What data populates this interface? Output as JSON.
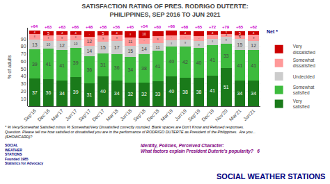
{
  "chart_data": {
    "type": "bar",
    "stacked": true,
    "data_labels": true,
    "grid": true,
    "legend": "right",
    "title": "SATISFACTION RATING OF PRES. RODRIGO DUTERTE:",
    "subtitle": "PHILIPPINES, SEP 2016 TO JUN 2021",
    "ylabel": "% of adults",
    "categories": [
      "Sep'16",
      "Dec'16",
      "Mar'17",
      "Jun'17",
      "Sep'17",
      "Dec'17",
      "Mar'18",
      "Jun'18",
      "Sep'18",
      "Dec'18",
      "Mar'19",
      "Jun'19",
      "Sep'19",
      "Dec'19",
      "Nov'20",
      "Mar'21",
      "Jun'21"
    ],
    "series": [
      {
        "name": "Very\nsatisfied",
        "color": "#1a7a1a",
        "values": [
          37,
          36,
          34,
          39,
          31,
          40,
          34,
          32,
          32,
          33,
          40,
          38,
          38,
          41,
          51,
          34,
          34
        ]
      },
      {
        "name": "Somewhat\nsatisfied",
        "color": "#3dbb3d",
        "values": [
          39,
          41,
          41,
          39,
          36,
          31,
          36,
          34,
          38,
          41,
          40,
          42,
          40,
          41,
          33,
          41,
          41
        ]
      },
      {
        "name": "Undecided",
        "color": "#cccccc",
        "values": [
          13,
          10,
          12,
          10,
          14,
          15,
          17,
          15,
          14,
          11,
          8,
          9,
          9,
          8,
          9,
          15,
          12
        ]
      },
      {
        "name": "Somewhat\ndissatisfied",
        "color": "#ff9999",
        "values": [
          8,
          8,
          9,
          8,
          12,
          9,
          9,
          11,
          7,
          9,
          7,
          7,
          7,
          6,
          4,
          5,
          9
        ]
      },
      {
        "name": "Very\ndissatisfied",
        "color": "#cc0000",
        "values": [
          4,
          5,
          4,
          4,
          7,
          5,
          4,
          8,
          10,
          6,
          6,
          4,
          6,
          4,
          3,
          5,
          4
        ]
      }
    ],
    "net": {
      "label": "Net *",
      "values": [
        64,
        63,
        63,
        66,
        48,
        58,
        56,
        45,
        54,
        60,
        66,
        68,
        65,
        72,
        79,
        65,
        62
      ],
      "value_labels": [
        "+64",
        "+63",
        "+63",
        "+66",
        "+48",
        "+58",
        "+56",
        "+45",
        "+54",
        "+60",
        "+66",
        "+68",
        "+65",
        "+72",
        "+79",
        "+65",
        "+62"
      ]
    },
    "ylim": [
      0,
      105
    ],
    "yticks": [
      10,
      20,
      30,
      40,
      50,
      60,
      70,
      80,
      90
    ],
    "annotations": [
      {
        "text": "* % Very/Somewhat Satisfied minus % Somewhat/Very Dissatisfied correctly rounded. Blank spaces are Don't Know and Refused responses.\nQuestion. Please tell me how satisfied or dissatisfied you are in the performance of RODRIGO DUTERTE as President of the Philippines.  Are you...\n(SHOWCARD)?"
      },
      {
        "text": "SOCIAL\nWEATHER\nSTATIONS\nFounded 1985\nStatistics for Advocacy"
      },
      {
        "text": "Identity, Policies, Perceived Character:\nWhat factors explain President Duterte's popularity?   6"
      },
      {
        "text": "SOCIAL WEATHER STATIONS"
      }
    ]
  }
}
